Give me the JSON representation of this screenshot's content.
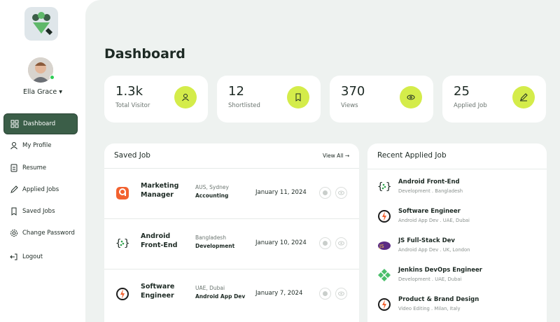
{
  "sidebar": {
    "user_name": "Ella Grace",
    "nav": [
      "Dashboard",
      "My Profile",
      "Resume",
      "Applied Jobs",
      "Saved Jobs",
      "Change Password",
      "Logout"
    ]
  },
  "header": {
    "title": "Dashboard"
  },
  "stats": [
    {
      "value": "1.3k",
      "label": "Total Visitor"
    },
    {
      "value": "12",
      "label": "Shortlisted"
    },
    {
      "value": "370",
      "label": "Views"
    },
    {
      "value": "25",
      "label": "Applied Job"
    }
  ],
  "saved_job": {
    "title": "Saved Job",
    "view_all": "View All",
    "rows": [
      {
        "title": "Marketing Manager",
        "location": "AUS, Sydney",
        "category": "Accounting",
        "date": "January 11, 2024"
      },
      {
        "title": "Android Front-End",
        "location": "Bangladesh",
        "category": "Development",
        "date": "January 10, 2024"
      },
      {
        "title": "Software Engineer",
        "location": "UAE, Dubai",
        "category": "Android App Dev",
        "date": "January 7, 2024"
      }
    ]
  },
  "recent_applied": {
    "title": "Recent Applied Job",
    "items": [
      {
        "title": "Android Front-End",
        "meta": "Development . Bangladesh"
      },
      {
        "title": "Software Engineer",
        "meta": "Android App Dev . UAE, Dubai"
      },
      {
        "title": "JS Full-Stack Dev",
        "meta": "Android App Dev . UK, London"
      },
      {
        "title": "Jenkins DevOps Engineer",
        "meta": "Development . UAE, Dubai"
      },
      {
        "title": "Product & Brand Design",
        "meta": "Video Editing . Milan, Italy"
      }
    ]
  }
}
